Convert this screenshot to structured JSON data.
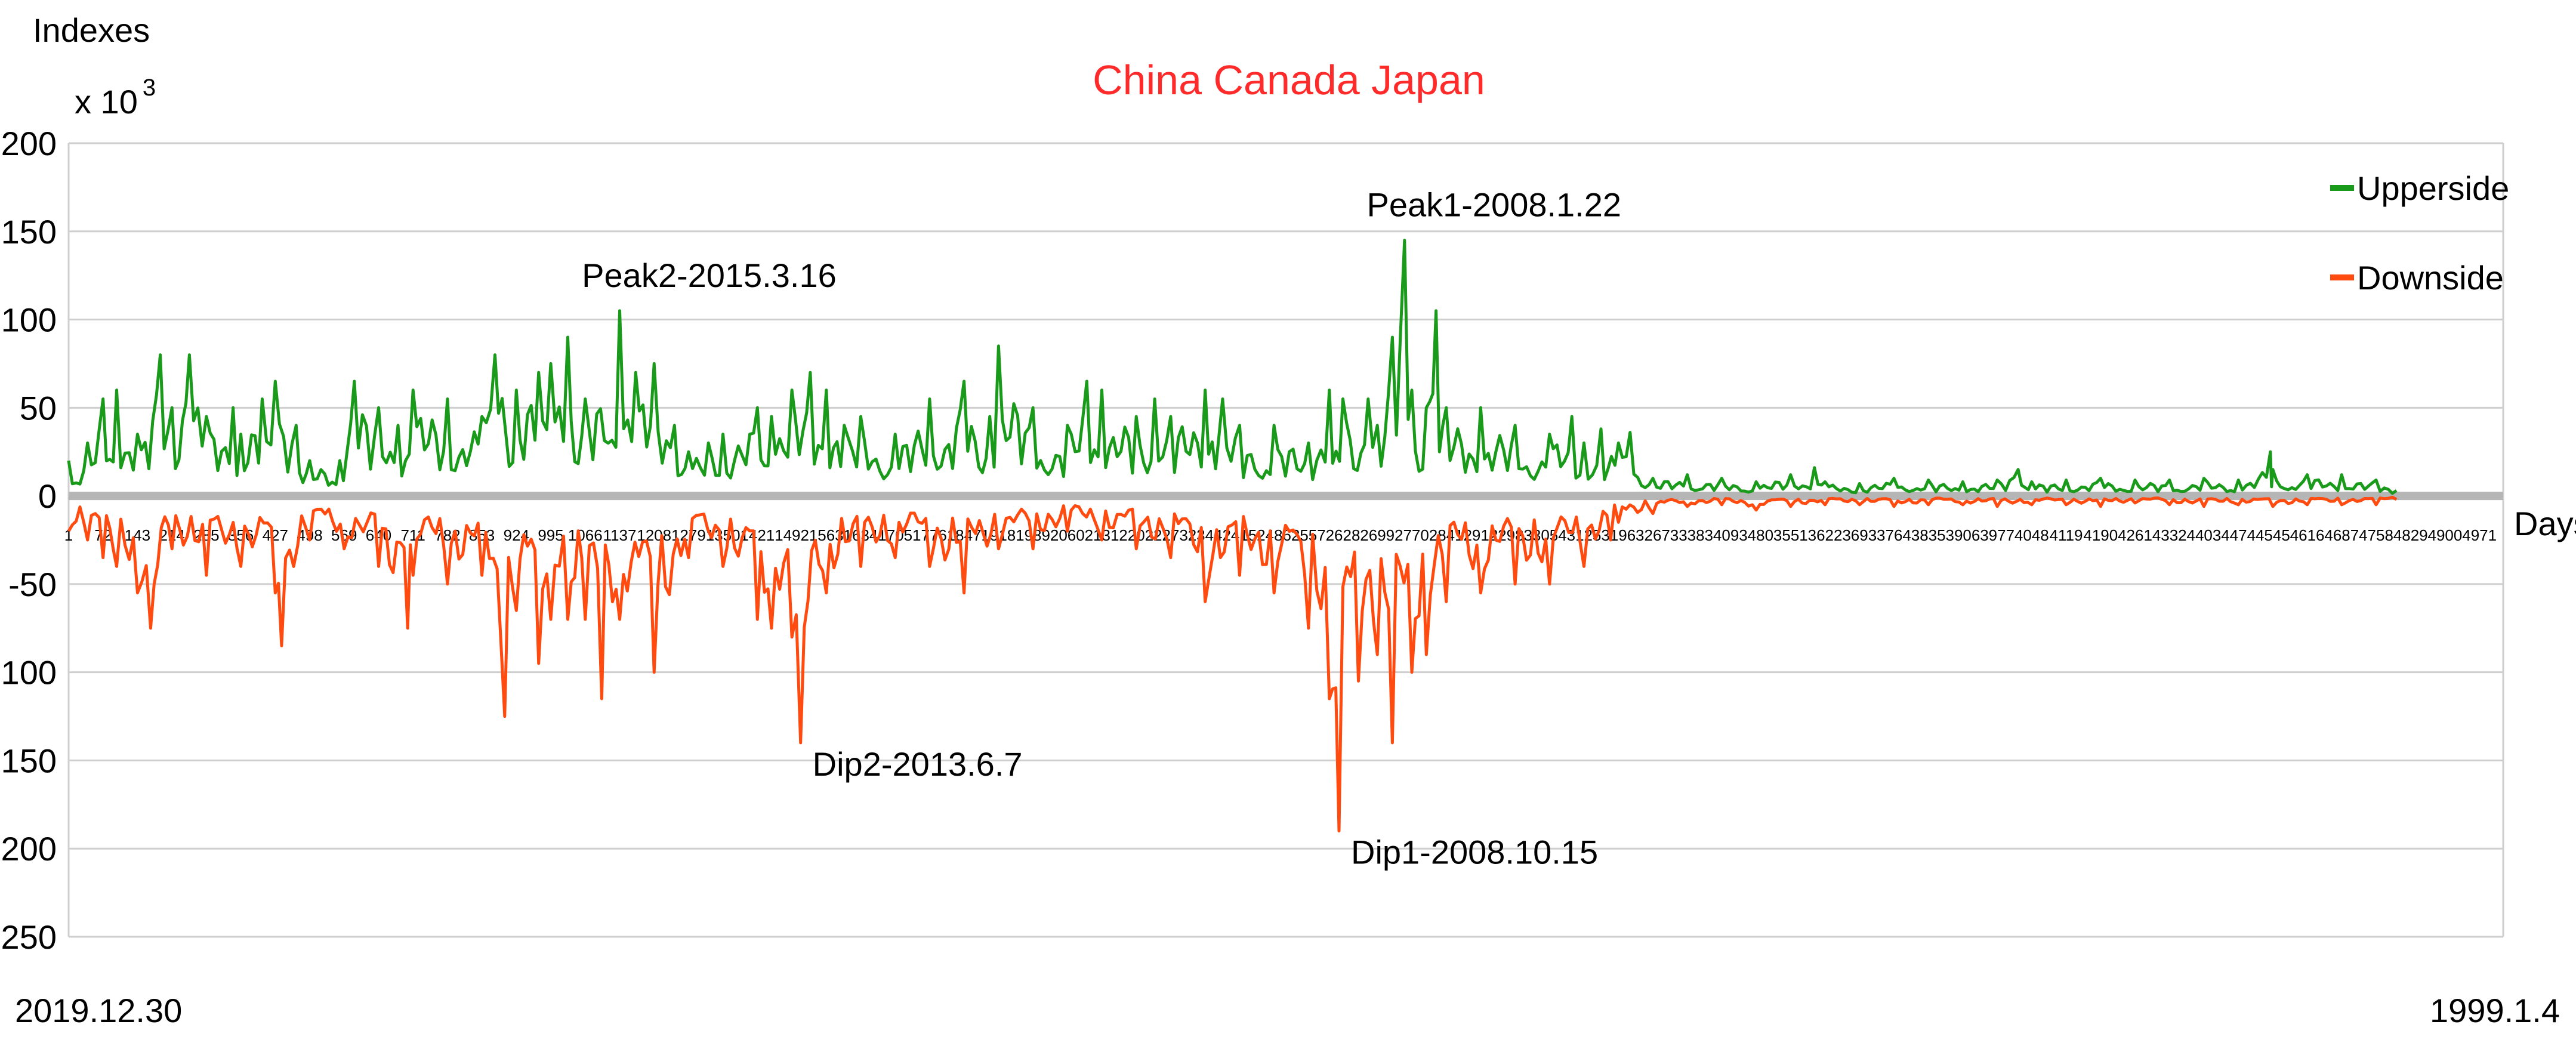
{
  "chart_data": {
    "type": "line",
    "title": "China  Canada  Japan",
    "ylabel": "Indexes",
    "y_multiplier": "x 10",
    "y_multiplier_exp": "3",
    "xlabel": "Days",
    "date_start_label": "2019.12.30",
    "date_end_label": "1999.1.4",
    "ylim": [
      -250,
      200
    ],
    "yticks": [
      200,
      150,
      100,
      50,
      0,
      -50,
      -100,
      -150,
      -200,
      -250
    ],
    "xlim": [
      1,
      5020
    ],
    "xticks": [
      1,
      72,
      143,
      214,
      285,
      356,
      427,
      498,
      569,
      640,
      711,
      782,
      853,
      924,
      995,
      1066,
      1137,
      1208,
      1279,
      1350,
      1421,
      1492,
      1563,
      1634,
      1705,
      1776,
      1847,
      1918,
      1989,
      2060,
      2131,
      2202,
      2273,
      2344,
      2415,
      2486,
      2557,
      2628,
      2699,
      2770,
      2841,
      2912,
      2983,
      3054,
      3125,
      3196,
      3267,
      3338,
      3409,
      3480,
      3551,
      3622,
      3693,
      3764,
      3835,
      3906,
      3977,
      4048,
      4119,
      4190,
      4261,
      4332,
      4403,
      4474,
      4545,
      4616,
      4687,
      4758,
      4829,
      4900,
      4971
    ],
    "grid": true,
    "legend_position": "top-right",
    "series": [
      {
        "name": "Upperside",
        "color": "#1a9a1a",
        "points": [
          [
            1,
            20
          ],
          [
            40,
            30
          ],
          [
            72,
            55
          ],
          [
            100,
            60
          ],
          [
            143,
            35
          ],
          [
            190,
            80
          ],
          [
            214,
            50
          ],
          [
            250,
            80
          ],
          [
            285,
            45
          ],
          [
            340,
            50
          ],
          [
            356,
            35
          ],
          [
            400,
            55
          ],
          [
            427,
            65
          ],
          [
            470,
            40
          ],
          [
            498,
            20
          ],
          [
            560,
            20
          ],
          [
            590,
            65
          ],
          [
            640,
            50
          ],
          [
            680,
            40
          ],
          [
            711,
            60
          ],
          [
            782,
            55
          ],
          [
            853,
            45
          ],
          [
            880,
            80
          ],
          [
            924,
            60
          ],
          [
            970,
            70
          ],
          [
            995,
            75
          ],
          [
            1030,
            90
          ],
          [
            1066,
            55
          ],
          [
            1137,
            105
          ],
          [
            1170,
            70
          ],
          [
            1208,
            75
          ],
          [
            1250,
            40
          ],
          [
            1279,
            25
          ],
          [
            1320,
            30
          ],
          [
            1350,
            35
          ],
          [
            1421,
            50
          ],
          [
            1450,
            45
          ],
          [
            1492,
            60
          ],
          [
            1530,
            70
          ],
          [
            1563,
            60
          ],
          [
            1600,
            40
          ],
          [
            1634,
            45
          ],
          [
            1705,
            35
          ],
          [
            1776,
            55
          ],
          [
            1847,
            65
          ],
          [
            1900,
            45
          ],
          [
            1918,
            85
          ],
          [
            1989,
            50
          ],
          [
            2060,
            40
          ],
          [
            2100,
            65
          ],
          [
            2131,
            60
          ],
          [
            2202,
            45
          ],
          [
            2240,
            55
          ],
          [
            2273,
            45
          ],
          [
            2344,
            60
          ],
          [
            2380,
            55
          ],
          [
            2415,
            40
          ],
          [
            2486,
            40
          ],
          [
            2557,
            30
          ],
          [
            2600,
            60
          ],
          [
            2628,
            55
          ],
          [
            2680,
            55
          ],
          [
            2699,
            40
          ],
          [
            2730,
            90
          ],
          [
            2755,
            145
          ],
          [
            2770,
            60
          ],
          [
            2800,
            50
          ],
          [
            2820,
            105
          ],
          [
            2841,
            50
          ],
          [
            2912,
            50
          ],
          [
            2983,
            40
          ],
          [
            3054,
            35
          ],
          [
            3100,
            45
          ],
          [
            3125,
            30
          ],
          [
            3160,
            38
          ],
          [
            3196,
            30
          ],
          [
            3220,
            36
          ],
          [
            3267,
            10
          ],
          [
            3338,
            12
          ],
          [
            3409,
            10
          ],
          [
            3480,
            8
          ],
          [
            3551,
            12
          ],
          [
            3600,
            16
          ],
          [
            3622,
            8
          ],
          [
            3693,
            7
          ],
          [
            3764,
            10
          ],
          [
            3835,
            9
          ],
          [
            3906,
            8
          ],
          [
            3977,
            9
          ],
          [
            4020,
            15
          ],
          [
            4048,
            8
          ],
          [
            4119,
            9
          ],
          [
            4190,
            10
          ],
          [
            4261,
            9
          ],
          [
            4332,
            9
          ],
          [
            4403,
            10
          ],
          [
            4474,
            9
          ],
          [
            4540,
            25
          ],
          [
            4545,
            15
          ],
          [
            4616,
            12
          ],
          [
            4687,
            12
          ],
          [
            4758,
            9
          ],
          [
            4800,
            3
          ]
        ]
      },
      {
        "name": "Downside",
        "color": "#ff4a10",
        "points": [
          [
            1,
            -20
          ],
          [
            40,
            -25
          ],
          [
            72,
            -35
          ],
          [
            100,
            -40
          ],
          [
            143,
            -55
          ],
          [
            170,
            -75
          ],
          [
            214,
            -30
          ],
          [
            285,
            -45
          ],
          [
            356,
            -40
          ],
          [
            427,
            -55
          ],
          [
            440,
            -85
          ],
          [
            498,
            -25
          ],
          [
            569,
            -30
          ],
          [
            640,
            -40
          ],
          [
            700,
            -75
          ],
          [
            711,
            -45
          ],
          [
            782,
            -50
          ],
          [
            853,
            -45
          ],
          [
            900,
            -125
          ],
          [
            924,
            -65
          ],
          [
            970,
            -95
          ],
          [
            995,
            -70
          ],
          [
            1030,
            -70
          ],
          [
            1066,
            -70
          ],
          [
            1100,
            -115
          ],
          [
            1137,
            -70
          ],
          [
            1208,
            -100
          ],
          [
            1279,
            -35
          ],
          [
            1350,
            -40
          ],
          [
            1421,
            -70
          ],
          [
            1450,
            -75
          ],
          [
            1492,
            -80
          ],
          [
            1510,
            -140
          ],
          [
            1563,
            -55
          ],
          [
            1634,
            -40
          ],
          [
            1705,
            -35
          ],
          [
            1776,
            -40
          ],
          [
            1847,
            -55
          ],
          [
            1918,
            -30
          ],
          [
            1989,
            -30
          ],
          [
            2060,
            -20
          ],
          [
            2131,
            -25
          ],
          [
            2202,
            -30
          ],
          [
            2273,
            -35
          ],
          [
            2344,
            -60
          ],
          [
            2415,
            -45
          ],
          [
            2486,
            -55
          ],
          [
            2557,
            -75
          ],
          [
            2600,
            -115
          ],
          [
            2620,
            -190
          ],
          [
            2660,
            -105
          ],
          [
            2699,
            -90
          ],
          [
            2730,
            -140
          ],
          [
            2770,
            -100
          ],
          [
            2800,
            -90
          ],
          [
            2841,
            -60
          ],
          [
            2912,
            -55
          ],
          [
            2983,
            -50
          ],
          [
            3054,
            -50
          ],
          [
            3125,
            -40
          ],
          [
            3180,
            -25
          ],
          [
            3196,
            -15
          ],
          [
            3267,
            -10
          ],
          [
            3338,
            -6
          ],
          [
            3409,
            -5
          ],
          [
            3480,
            -8
          ],
          [
            3551,
            -6
          ],
          [
            3622,
            -5
          ],
          [
            3693,
            -5
          ],
          [
            3764,
            -6
          ],
          [
            3835,
            -5
          ],
          [
            3906,
            -5
          ],
          [
            3977,
            -6
          ],
          [
            4048,
            -5
          ],
          [
            4119,
            -5
          ],
          [
            4190,
            -6
          ],
          [
            4261,
            -4
          ],
          [
            4332,
            -5
          ],
          [
            4403,
            -6
          ],
          [
            4474,
            -5
          ],
          [
            4545,
            -6
          ],
          [
            4616,
            -5
          ],
          [
            4687,
            -5
          ],
          [
            4758,
            -5
          ],
          [
            4800,
            -2
          ]
        ]
      }
    ],
    "annotations": [
      {
        "label": "Peak1-2008.1.22",
        "x": 2755,
        "y": 145,
        "anchor": "above"
      },
      {
        "label": "Peak2-2015.3.16",
        "x": 1137,
        "y": 105,
        "anchor": "above"
      },
      {
        "label": "Dip2-2013.6.7",
        "x": 1510,
        "y": -140,
        "anchor": "right"
      },
      {
        "label": "Dip1-2008.10.15",
        "x": 2620,
        "y": -190,
        "anchor": "right"
      }
    ]
  }
}
